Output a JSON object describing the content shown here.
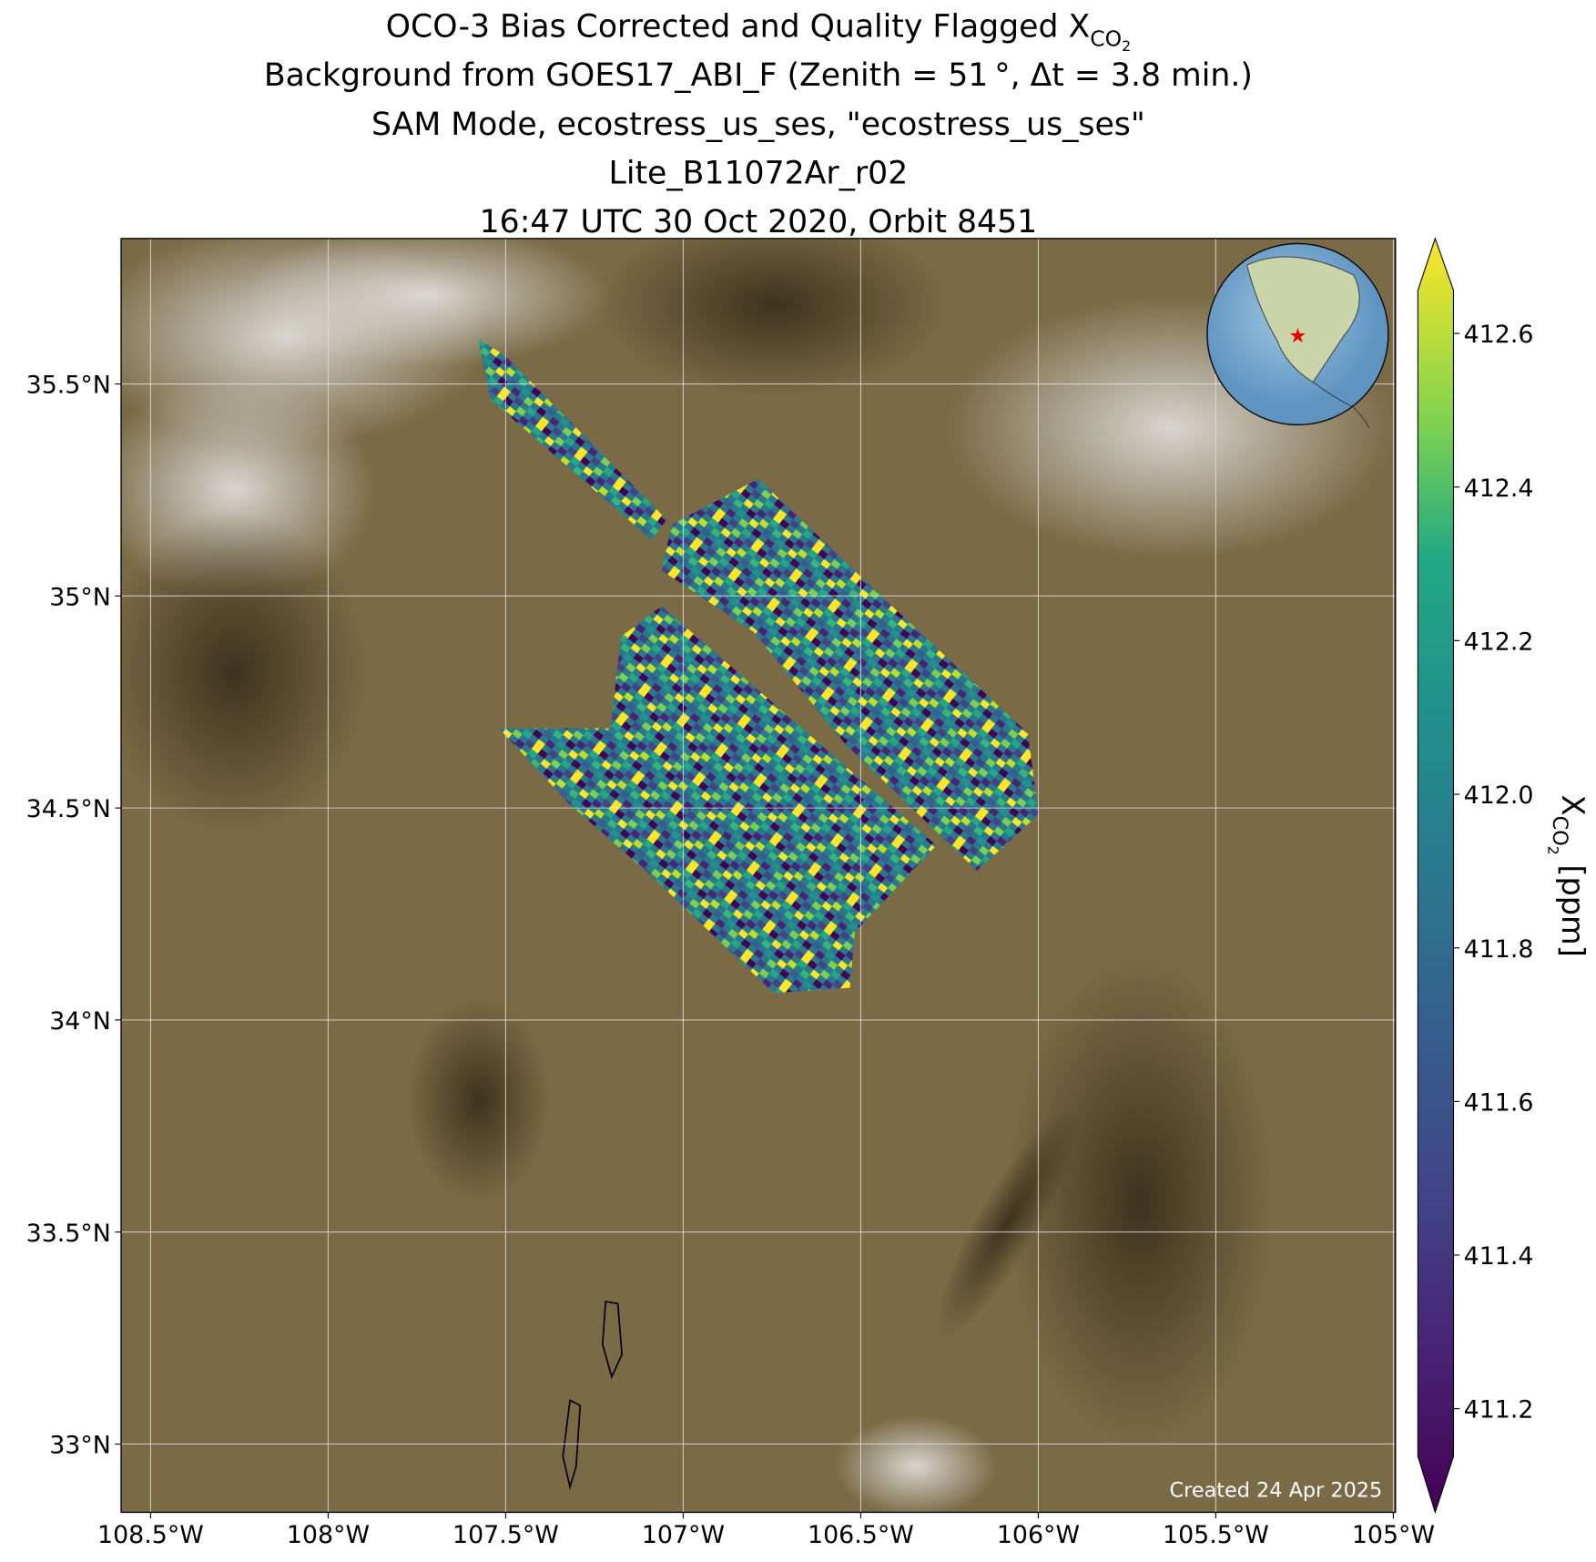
{
  "chart_data": {
    "type": "map",
    "title_lines": [
      "Background from GOES17_ABI_F (Zenith = 51$^\\circ$, Δt =  3.8 min.)"
    ],
    "title": {
      "text": "OCO-3 Bias Corrected and Quality Flagged X",
      "sub": "CO",
      "subsub": "2"
    },
    "subtitles": [
      "Background from GOES17_ABI_F (Zenith = 51 °, Δt =  3.8 min.)",
      "SAM Mode, ecostress_us_ses, \"ecostress_us_ses\"",
      "Lite_B11072Ar_r02",
      "16:47 UTC 30 Oct 2020, Orbit 8451"
    ],
    "xlim": [
      -108.583,
      -104.994
    ],
    "ylim": [
      32.839,
      35.843
    ],
    "xticks": [
      {
        "value": -108.5,
        "label": "108.5°W"
      },
      {
        "value": -108,
        "label": "108°W"
      },
      {
        "value": -107.5,
        "label": "107.5°W"
      },
      {
        "value": -107,
        "label": "107°W"
      },
      {
        "value": -106.5,
        "label": "106.5°W"
      },
      {
        "value": -106,
        "label": "106°W"
      },
      {
        "value": -105.5,
        "label": "105.5°W"
      },
      {
        "value": -105,
        "label": "105°W"
      }
    ],
    "yticks": [
      {
        "value": 33,
        "label": "33°N"
      },
      {
        "value": 33.5,
        "label": "33.5°N"
      },
      {
        "value": 34,
        "label": "34°N"
      },
      {
        "value": 34.5,
        "label": "34.5°N"
      },
      {
        "value": 35,
        "label": "35°N"
      },
      {
        "value": 35.5,
        "label": "35.5°N"
      }
    ],
    "grid": true,
    "colormap": "viridis",
    "clim": [
      411.138,
      412.656
    ],
    "cticks": [
      411.2,
      411.4,
      411.6,
      411.8,
      {
        "value": 412,
        "label": "412.0"
      },
      412.2,
      412.4,
      412.6
    ],
    "colorbar_label": {
      "text": "X",
      "sub": "CO",
      "subsub": "2",
      "unit": "[ppm]"
    },
    "footer": "Created 24 Apr 2025"
  }
}
